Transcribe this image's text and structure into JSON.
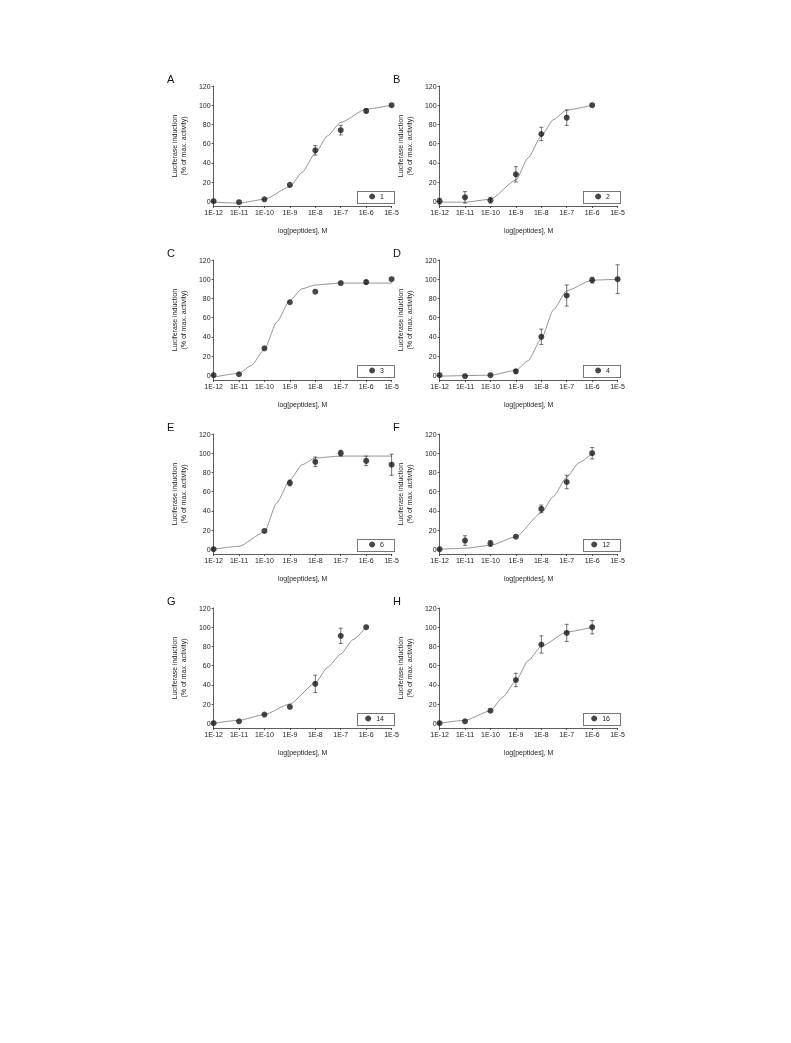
{
  "chart_data": [
    {
      "type": "scatter",
      "title": "A",
      "xlabel": "log[peptides], M",
      "ylabel": "Luciferase induction\n(% of max. activity)",
      "log": "x",
      "xlim": [
        1e-12,
        1e-05
      ],
      "xticks": [
        {
          "value": 1e-12,
          "label": "1E-12"
        },
        {
          "value": 1e-11,
          "label": "1E-11"
        },
        {
          "value": 1e-10,
          "label": "1E-10"
        },
        {
          "value": 1e-09,
          "label": "1E-9"
        },
        {
          "value": 1e-08,
          "label": "1E-8"
        },
        {
          "value": 1e-07,
          "label": "1E-7"
        },
        {
          "value": 1e-06,
          "label": "1E-6"
        },
        {
          "value": 1e-05,
          "label": "1E-5"
        }
      ],
      "ylim": [
        -5,
        120
      ],
      "yticks": [
        0,
        20,
        40,
        60,
        80,
        100,
        120
      ],
      "grid": false,
      "legend": "bottom right",
      "marker": "circle",
      "series": [
        {
          "name": "1",
          "type": "scatter",
          "color": "#1a1a1a",
          "x": [
            1e-12,
            1e-11,
            1e-10,
            1e-09,
            1e-08,
            1e-07,
            1e-06,
            1e-05
          ],
          "values": [
            0,
            -1,
            2,
            17,
            53,
            74,
            94,
            100
          ],
          "errors": [
            null,
            null,
            null,
            null,
            5,
            5,
            2,
            null
          ]
        },
        {
          "type": "line",
          "color": "#666666",
          "marker": "none",
          "x": [
            1e-12,
            1e-11,
            1e-10,
            1e-09,
            3e-09,
            1e-08,
            3e-08,
            1e-07,
            1e-06,
            1e-05
          ],
          "values": [
            -1,
            -2,
            2,
            15,
            30,
            50,
            68,
            82,
            96,
            100
          ]
        }
      ]
    },
    {
      "type": "scatter",
      "title": "B",
      "xlabel": "log[peptides], M",
      "ylabel": "Luciferase induction\n(% of max. activity)",
      "log": "x",
      "xlim": [
        1e-12,
        1e-05
      ],
      "xticks": [
        {
          "value": 1e-12,
          "label": "1E-12"
        },
        {
          "value": 1e-11,
          "label": "1E-11"
        },
        {
          "value": 1e-10,
          "label": "1E-10"
        },
        {
          "value": 1e-09,
          "label": "1E-9"
        },
        {
          "value": 1e-08,
          "label": "1E-8"
        },
        {
          "value": 1e-07,
          "label": "1E-7"
        },
        {
          "value": 1e-06,
          "label": "1E-6"
        },
        {
          "value": 1e-05,
          "label": "1E-5"
        }
      ],
      "ylim": [
        -5,
        120
      ],
      "yticks": [
        0,
        20,
        40,
        60,
        80,
        100,
        120
      ],
      "grid": false,
      "legend": "bottom right",
      "marker": "circle",
      "series": [
        {
          "name": "2",
          "type": "scatter",
          "color": "#1a1a1a",
          "x": [
            1e-12,
            1e-11,
            1e-10,
            1e-09,
            1e-08,
            1e-07,
            1e-06
          ],
          "values": [
            0,
            4,
            1,
            28,
            70,
            87,
            100
          ],
          "errors": [
            3,
            6,
            3,
            8,
            7,
            8,
            null
          ]
        },
        {
          "type": "line",
          "color": "#666666",
          "marker": "none",
          "x": [
            1e-12,
            1e-11,
            1e-10,
            1e-09,
            3e-09,
            1e-08,
            3e-08,
            1e-07,
            1e-06
          ],
          "values": [
            -1,
            -1,
            2,
            22,
            45,
            68,
            85,
            95,
            100
          ]
        }
      ]
    },
    {
      "type": "scatter",
      "title": "C",
      "xlabel": "log[peptides], M",
      "ylabel": "Luciferase induction\n(% of max. activity)",
      "log": "x",
      "xlim": [
        1e-12,
        1e-05
      ],
      "xticks": [
        {
          "value": 1e-12,
          "label": "1E-12"
        },
        {
          "value": 1e-11,
          "label": "1E-11"
        },
        {
          "value": 1e-10,
          "label": "1E-10"
        },
        {
          "value": 1e-09,
          "label": "1E-9"
        },
        {
          "value": 1e-08,
          "label": "1E-8"
        },
        {
          "value": 1e-07,
          "label": "1E-7"
        },
        {
          "value": 1e-06,
          "label": "1E-6"
        },
        {
          "value": 1e-05,
          "label": "1E-5"
        }
      ],
      "ylim": [
        -5,
        120
      ],
      "yticks": [
        0,
        20,
        40,
        60,
        80,
        100,
        120
      ],
      "grid": false,
      "legend": "bottom right",
      "marker": "circle",
      "series": [
        {
          "name": "3",
          "type": "scatter",
          "color": "#1a1a1a",
          "x": [
            1e-12,
            1e-11,
            1e-10,
            1e-09,
            1e-08,
            1e-07,
            1e-06,
            1e-05
          ],
          "values": [
            0,
            1,
            28,
            76,
            87,
            96,
            97,
            100
          ],
          "errors": [
            null,
            null,
            null,
            null,
            null,
            null,
            2,
            null
          ]
        },
        {
          "type": "line",
          "color": "#666666",
          "marker": "none",
          "x": [
            1e-12,
            1e-11,
            3e-11,
            1e-10,
            3e-10,
            1e-09,
            3e-09,
            1e-08,
            1e-07,
            1e-05
          ],
          "values": [
            -2,
            2,
            10,
            27,
            55,
            78,
            90,
            94,
            96,
            96
          ]
        }
      ]
    },
    {
      "type": "scatter",
      "title": "D",
      "xlabel": "log[peptides], M",
      "ylabel": "Luciferase induction\n(% of max. activity)",
      "log": "x",
      "xlim": [
        1e-12,
        1e-05
      ],
      "xticks": [
        {
          "value": 1e-12,
          "label": "1E-12"
        },
        {
          "value": 1e-11,
          "label": "1E-11"
        },
        {
          "value": 1e-10,
          "label": "1E-10"
        },
        {
          "value": 1e-09,
          "label": "1E-9"
        },
        {
          "value": 1e-08,
          "label": "1E-8"
        },
        {
          "value": 1e-07,
          "label": "1E-7"
        },
        {
          "value": 1e-06,
          "label": "1E-6"
        },
        {
          "value": 1e-05,
          "label": "1E-5"
        }
      ],
      "ylim": [
        -5,
        120
      ],
      "yticks": [
        0,
        20,
        40,
        60,
        80,
        100,
        120
      ],
      "grid": false,
      "legend": "bottom right",
      "marker": "circle",
      "series": [
        {
          "name": "4",
          "type": "scatter",
          "color": "#1a1a1a",
          "x": [
            1e-12,
            1e-11,
            1e-10,
            1e-09,
            1e-08,
            1e-07,
            1e-06,
            1e-05
          ],
          "values": [
            0,
            -1,
            0,
            4,
            40,
            83,
            99,
            100
          ],
          "errors": [
            null,
            null,
            null,
            2,
            8,
            11,
            3,
            15
          ]
        },
        {
          "type": "line",
          "color": "#666666",
          "marker": "none",
          "x": [
            1e-12,
            1e-10,
            1e-09,
            3e-09,
            1e-08,
            3e-08,
            1e-07,
            1e-06,
            1e-05
          ],
          "values": [
            -1,
            0,
            5,
            15,
            38,
            68,
            88,
            99,
            100
          ]
        }
      ]
    },
    {
      "type": "scatter",
      "title": "E",
      "xlabel": "log[peptides], M",
      "ylabel": "Luciferase induction\n(% of max. activity)",
      "log": "x",
      "xlim": [
        1e-12,
        1e-05
      ],
      "xticks": [
        {
          "value": 1e-12,
          "label": "1E-12"
        },
        {
          "value": 1e-11,
          "label": "1E-11"
        },
        {
          "value": 1e-10,
          "label": "1E-10"
        },
        {
          "value": 1e-09,
          "label": "1E-9"
        },
        {
          "value": 1e-08,
          "label": "1E-8"
        },
        {
          "value": 1e-07,
          "label": "1E-7"
        },
        {
          "value": 1e-06,
          "label": "1E-6"
        },
        {
          "value": 1e-05,
          "label": "1E-5"
        }
      ],
      "ylim": [
        -5,
        120
      ],
      "yticks": [
        0,
        20,
        40,
        60,
        80,
        100,
        120
      ],
      "grid": false,
      "legend": "bottom right",
      "marker": "circle",
      "series": [
        {
          "name": "6",
          "type": "scatter",
          "color": "#1a1a1a",
          "x": [
            1e-12,
            1e-10,
            1e-09,
            1e-08,
            1e-07,
            1e-06,
            1e-05
          ],
          "values": [
            0,
            19,
            69,
            91,
            100,
            92,
            88
          ],
          "errors": [
            null,
            null,
            3,
            5,
            3,
            5,
            11
          ]
        },
        {
          "type": "line",
          "color": "#666666",
          "marker": "none",
          "x": [
            1e-12,
            1e-11,
            1e-10,
            3e-10,
            1e-09,
            3e-09,
            1e-08,
            1e-07,
            1e-05
          ],
          "values": [
            0,
            3,
            18,
            48,
            72,
            88,
            95,
            97,
            97
          ]
        }
      ]
    },
    {
      "type": "scatter",
      "title": "F",
      "xlabel": "log[peptides], M",
      "ylabel": "Luciferase induction\n(% of max. activity)",
      "log": "x",
      "xlim": [
        1e-12,
        1e-05
      ],
      "xticks": [
        {
          "value": 1e-12,
          "label": "1E-12"
        },
        {
          "value": 1e-11,
          "label": "1E-11"
        },
        {
          "value": 1e-10,
          "label": "1E-10"
        },
        {
          "value": 1e-09,
          "label": "1E-9"
        },
        {
          "value": 1e-08,
          "label": "1E-8"
        },
        {
          "value": 1e-07,
          "label": "1E-7"
        },
        {
          "value": 1e-06,
          "label": "1E-6"
        },
        {
          "value": 1e-05,
          "label": "1E-5"
        }
      ],
      "ylim": [
        -5,
        120
      ],
      "yticks": [
        0,
        20,
        40,
        60,
        80,
        100,
        120
      ],
      "grid": false,
      "legend": "bottom right",
      "marker": "circle",
      "series": [
        {
          "name": "12",
          "type": "scatter",
          "color": "#1a1a1a",
          "x": [
            1e-12,
            1e-11,
            1e-10,
            1e-09,
            1e-08,
            1e-07,
            1e-06
          ],
          "values": [
            0,
            9,
            6,
            13,
            42,
            70,
            100
          ],
          "errors": [
            null,
            5,
            3,
            null,
            4,
            7,
            6
          ]
        },
        {
          "type": "line",
          "color": "#666666",
          "marker": "none",
          "x": [
            1e-12,
            1e-11,
            1e-10,
            1e-09,
            1e-08,
            3e-08,
            1e-07,
            3e-07,
            1e-06
          ],
          "values": [
            0,
            1,
            4,
            13,
            38,
            55,
            75,
            90,
            100
          ]
        }
      ]
    },
    {
      "type": "scatter",
      "title": "G",
      "xlabel": "log[peptides], M",
      "ylabel": "Luciferase induction\n(% of max. activity)",
      "log": "x",
      "xlim": [
        1e-12,
        1e-05
      ],
      "xticks": [
        {
          "value": 1e-12,
          "label": "1E-12"
        },
        {
          "value": 1e-11,
          "label": "1E-11"
        },
        {
          "value": 1e-10,
          "label": "1E-10"
        },
        {
          "value": 1e-09,
          "label": "1E-9"
        },
        {
          "value": 1e-08,
          "label": "1E-8"
        },
        {
          "value": 1e-07,
          "label": "1E-7"
        },
        {
          "value": 1e-06,
          "label": "1E-6"
        },
        {
          "value": 1e-05,
          "label": "1E-5"
        }
      ],
      "ylim": [
        -5,
        120
      ],
      "yticks": [
        0,
        20,
        40,
        60,
        80,
        100,
        120
      ],
      "grid": false,
      "legend": "bottom right",
      "marker": "circle",
      "series": [
        {
          "name": "14",
          "type": "scatter",
          "color": "#1a1a1a",
          "x": [
            1e-12,
            1e-11,
            1e-10,
            1e-09,
            1e-08,
            1e-07,
            1e-06
          ],
          "values": [
            0,
            2,
            9,
            17,
            41,
            91,
            100
          ],
          "errors": [
            null,
            null,
            null,
            null,
            9,
            8,
            null
          ]
        },
        {
          "type": "line",
          "color": "#666666",
          "marker": "none",
          "x": [
            1e-12,
            1e-11,
            1e-10,
            1e-09,
            1e-08,
            3e-08,
            1e-07,
            3e-07,
            1e-06
          ],
          "values": [
            0,
            3,
            9,
            20,
            42,
            58,
            72,
            87,
            100
          ]
        }
      ]
    },
    {
      "type": "scatter",
      "title": "H",
      "xlabel": "log[peptides], M",
      "ylabel": "Luciferase induction\n(% of max. activity)",
      "log": "x",
      "xlim": [
        1e-12,
        1e-05
      ],
      "xticks": [
        {
          "value": 1e-12,
          "label": "1E-12"
        },
        {
          "value": 1e-11,
          "label": "1E-11"
        },
        {
          "value": 1e-10,
          "label": "1E-10"
        },
        {
          "value": 1e-09,
          "label": "1E-9"
        },
        {
          "value": 1e-08,
          "label": "1E-8"
        },
        {
          "value": 1e-07,
          "label": "1E-7"
        },
        {
          "value": 1e-06,
          "label": "1E-6"
        },
        {
          "value": 1e-05,
          "label": "1E-5"
        }
      ],
      "ylim": [
        -5,
        120
      ],
      "yticks": [
        0,
        20,
        40,
        60,
        80,
        100,
        120
      ],
      "grid": false,
      "legend": "bottom right",
      "marker": "circle",
      "series": [
        {
          "name": "16",
          "type": "scatter",
          "color": "#1a1a1a",
          "x": [
            1e-12,
            1e-11,
            1e-10,
            1e-09,
            1e-08,
            1e-07,
            1e-06
          ],
          "values": [
            0,
            2,
            13,
            45,
            82,
            94,
            100
          ],
          "errors": [
            null,
            null,
            null,
            7,
            9,
            9,
            7
          ]
        },
        {
          "type": "line",
          "color": "#666666",
          "marker": "none",
          "x": [
            1e-12,
            1e-11,
            1e-10,
            3e-10,
            1e-09,
            3e-09,
            1e-08,
            1e-07,
            1e-06
          ],
          "values": [
            0,
            3,
            13,
            27,
            44,
            65,
            80,
            95,
            100
          ]
        }
      ]
    }
  ]
}
